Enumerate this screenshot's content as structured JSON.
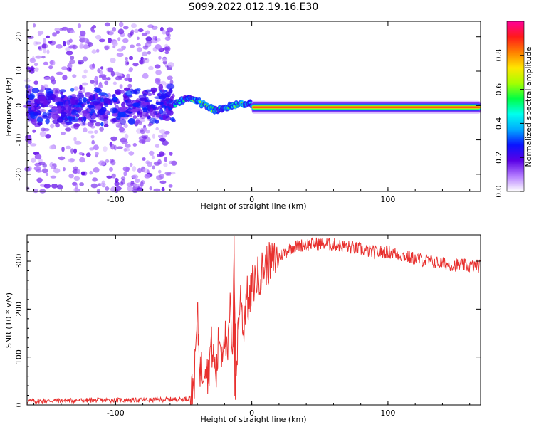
{
  "figure": {
    "title": "S099.2022.012.19.16.E30"
  },
  "chart_data": [
    {
      "type": "heatmap",
      "title": "S099.2022.012.19.16.E30",
      "xlabel": "Height of straight line (km)",
      "ylabel": "Frequency (Hz)",
      "xlim": [
        -165,
        168
      ],
      "ylim": [
        -25,
        24.5
      ],
      "xticks": [
        -100,
        0,
        100
      ],
      "yticks": [
        -20,
        -10,
        0,
        10,
        20
      ],
      "colorbar": {
        "label": "Normalized spectral amplitude",
        "range": [
          0.0,
          1.0
        ],
        "ticks": [
          0.0,
          0.2,
          0.4,
          0.6,
          0.8
        ],
        "colormap": [
          "#ffffff",
          "#b37bff",
          "#5a00e6",
          "#0a14ff",
          "#00aaff",
          "#00ffee",
          "#00ff44",
          "#a6ff00",
          "#ffe600",
          "#ff8000",
          "#ff1a1a",
          "#ff0099"
        ]
      },
      "features": [
        {
          "region": "scattered noise",
          "x_range": [
            -165,
            -57
          ],
          "freq_range": [
            -25,
            24
          ],
          "amplitude": 0.1
        },
        {
          "region": "strong band near 0 Hz",
          "x_range": [
            -165,
            -57
          ],
          "freq_center": 0,
          "freq_halfwidth": 6,
          "amplitude": 0.25
        },
        {
          "region": "wavy signal",
          "x_range": [
            -57,
            0
          ],
          "freq_center": 0,
          "amplitude": 0.5
        },
        {
          "region": "stable line",
          "x_range": [
            0,
            168
          ],
          "freq_center": -0.5,
          "amplitude": 0.85
        }
      ]
    },
    {
      "type": "line",
      "xlabel": "Height of straight line (km)",
      "ylabel": "SNR (10 * v/v)",
      "xlim": [
        -165,
        168
      ],
      "ylim": [
        0,
        355
      ],
      "xticks": [
        -100,
        0,
        100
      ],
      "yticks": [
        0,
        100,
        200,
        300
      ],
      "color": "#e8302e",
      "x": [
        -165,
        -140,
        -110,
        -80,
        -55,
        -47,
        -44,
        -42,
        -40,
        -38,
        -36,
        -34,
        -32,
        -30,
        -28,
        -26,
        -24,
        -22,
        -20,
        -18,
        -16,
        -14,
        -13,
        -12,
        -10,
        -8,
        -6,
        -4,
        -2,
        0,
        5,
        10,
        15,
        20,
        25,
        30,
        40,
        50,
        60,
        70,
        80,
        90,
        100,
        110,
        120,
        130,
        140,
        150,
        160,
        168
      ],
      "y": [
        8,
        9,
        10,
        10,
        12,
        13,
        25,
        60,
        187,
        80,
        70,
        100,
        60,
        130,
        95,
        60,
        150,
        110,
        160,
        85,
        200,
        120,
        352,
        18,
        170,
        230,
        150,
        240,
        200,
        250,
        270,
        290,
        300,
        310,
        320,
        330,
        335,
        337,
        335,
        330,
        325,
        318,
        320,
        312,
        305,
        300,
        295,
        292,
        290,
        290
      ]
    }
  ]
}
